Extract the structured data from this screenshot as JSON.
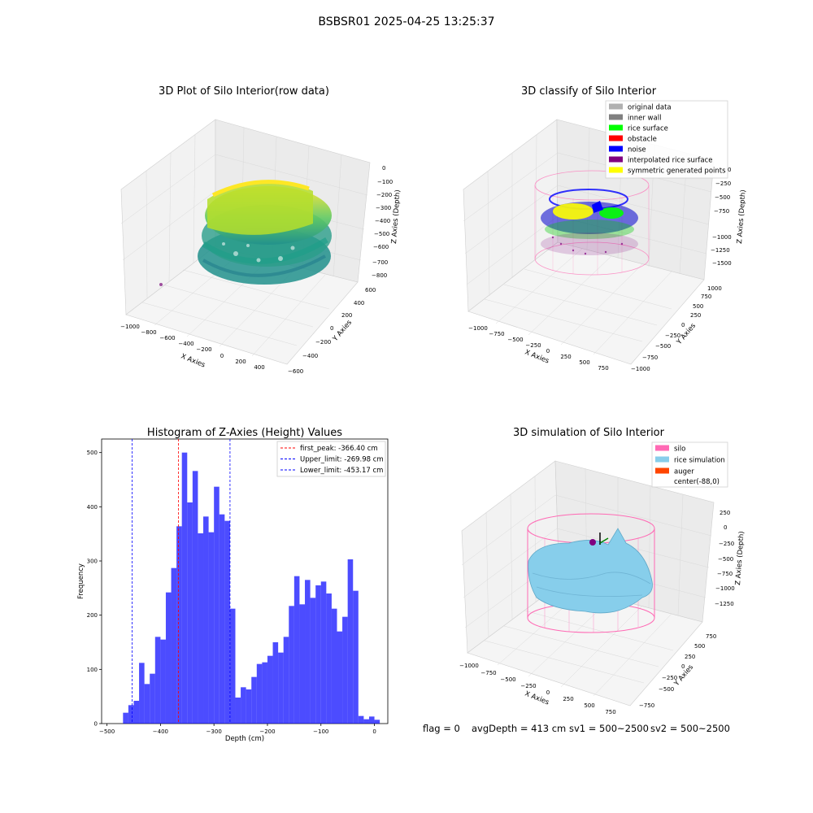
{
  "suptitle": "BSBSR01 2025-04-25 13:25:37",
  "panels": {
    "tl": {
      "title": "3D Plot of Silo Interior(row data)",
      "xlabel": "X Axies",
      "ylabel": "Y Axies",
      "zlabel": "Z Axies (Depth)",
      "xticks": [
        "−1000",
        "−800",
        "−600",
        "−400",
        "−200",
        "0",
        "200",
        "400"
      ],
      "yticks": [
        "−600",
        "−400",
        "−200",
        "0",
        "200",
        "400",
        "600"
      ],
      "zticks": [
        "0",
        "−100",
        "−200",
        "−300",
        "−400",
        "−500",
        "−600",
        "−700",
        "−800"
      ],
      "colormap": [
        "#440154",
        "#21918c",
        "#5ec962",
        "#fde725"
      ]
    },
    "tr": {
      "title": "3D classify of Silo Interior",
      "xlabel": "X Axies",
      "ylabel": "Y Axies",
      "zlabel": "Z Axies (Depth)",
      "xticks": [
        "−1000",
        "−750",
        "−500",
        "−250",
        "0",
        "250",
        "500",
        "750"
      ],
      "yticks": [
        "−1000",
        "−750",
        "−500",
        "−250",
        "0",
        "250",
        "500",
        "750",
        "1000"
      ],
      "zticks": [
        "0",
        "−250",
        "−500",
        "−750",
        "−1000",
        "−1250",
        "−1500"
      ],
      "legend": [
        {
          "label": "original data",
          "color": "#b0b0b0"
        },
        {
          "label": "inner wall",
          "color": "#808080"
        },
        {
          "label": "rice surface",
          "color": "#00ff00"
        },
        {
          "label": "obstacle",
          "color": "#ff0000"
        },
        {
          "label": "noise",
          "color": "#0000ff"
        },
        {
          "label": "interpolated rice surface",
          "color": "#800080"
        },
        {
          "label": "symmetric generated points",
          "color": "#ffff00"
        }
      ]
    },
    "br": {
      "title": "3D simulation of Silo Interior",
      "xlabel": "X Axies",
      "ylabel": "Y Axies",
      "zlabel": "Z Axies (Depth)",
      "xticks": [
        "−1000",
        "−750",
        "−500",
        "−250",
        "0",
        "250",
        "500",
        "750"
      ],
      "yticks": [
        "−750",
        "−500",
        "−250",
        "0",
        "250",
        "500",
        "750"
      ],
      "zticks": [
        "250",
        "0",
        "−250",
        "−500",
        "−750",
        "−1000",
        "−1250"
      ],
      "legend": [
        {
          "label": "silo",
          "color": "#ff69b4"
        },
        {
          "label": "rice simulation",
          "color": "#87ceeb"
        },
        {
          "label": "auger",
          "color": "#ff4500"
        },
        {
          "label": "center(-88,0)",
          "color": ""
        }
      ]
    }
  },
  "status": {
    "flag": "flag = 0",
    "avg": "avgDepth = 413 cm",
    "sv1": "sv1 = 500~2500",
    "sv2": "sv2 = 500~2500"
  },
  "chart_data": [
    {
      "type": "bar",
      "title": "Histogram of Z-Axies (Height) Values",
      "xlabel": "Depth (cm)",
      "ylabel": "Frequency",
      "xlim": [
        -510,
        25
      ],
      "ylim": [
        0,
        525
      ],
      "xticks": [
        -500,
        -400,
        -300,
        -200,
        -100,
        0
      ],
      "yticks": [
        0,
        100,
        200,
        300,
        400,
        500
      ],
      "bar_color": "#0000ff",
      "bin_start": -480,
      "bin_width": 10,
      "values": [
        0,
        20,
        34,
        42,
        112,
        73,
        92,
        160,
        155,
        242,
        287,
        364,
        500,
        408,
        466,
        351,
        382,
        353,
        437,
        386,
        374,
        212,
        48,
        67,
        63,
        86,
        110,
        113,
        125,
        150,
        131,
        160,
        217,
        272,
        220,
        265,
        232,
        255,
        262,
        240,
        212,
        170,
        197,
        303,
        245,
        14,
        8,
        13,
        7
      ],
      "vlines": [
        {
          "label": "first_peak: -366.40 cm",
          "x": -366.4,
          "color": "#ff0000"
        },
        {
          "label": "Upper_limit: -269.98 cm",
          "x": -269.98,
          "color": "#0000ff"
        },
        {
          "label": "Lower_limit: -453.17 cm",
          "x": -453.17,
          "color": "#0000ff"
        }
      ],
      "legend_position": "upper right"
    }
  ]
}
